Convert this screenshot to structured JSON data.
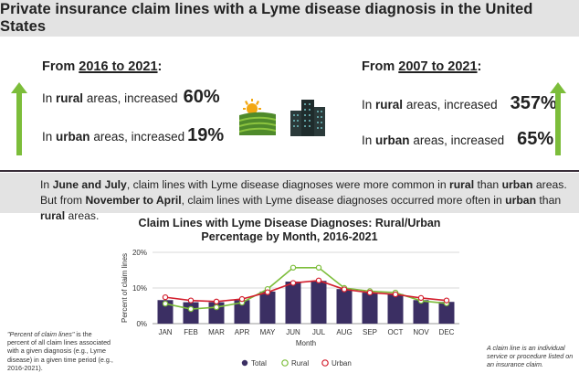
{
  "title": "Private insurance claim lines with a Lyme disease diagnosis in the United States",
  "left_block": {
    "from_label": "From",
    "years": "2016 to 2021",
    "colon": ":",
    "rural_prefix": "In",
    "rural_word": "rural",
    "rural_suffix": "areas, increased",
    "rural_value": "60%",
    "urban_prefix": "In",
    "urban_word": "urban",
    "urban_suffix": "areas, increased",
    "urban_value": "19%"
  },
  "right_block": {
    "from_label": "From",
    "years": "2007 to 2021",
    "colon": ":",
    "rural_prefix": "In",
    "rural_word": "rural",
    "rural_suffix": "areas, increased",
    "rural_value": "357%",
    "urban_prefix": "In",
    "urban_word": "urban",
    "urban_suffix": "areas, increased",
    "urban_value": "65%"
  },
  "icons": {
    "farm": "farm-field-sun-icon",
    "city": "city-buildings-icon",
    "arrow": "up-arrow-icon"
  },
  "note": {
    "s1a": "In",
    "s1b": "June and July",
    "s1c": ", claim lines with Lyme disease diagnoses were more common in",
    "s1d": "rural",
    "s1e": "than",
    "s1f": "urban",
    "s1g": "areas. But",
    "s2a": "from",
    "s2b": "November to April",
    "s2c": ", claim lines with Lyme disease diagnoses occurred more often in",
    "s2d": "urban",
    "s2e": "than",
    "s2f": "rural",
    "s2g": "areas."
  },
  "chart_data": {
    "type": "bar",
    "title": "Claim Lines with Lyme Disease Diagnoses: Rural/Urban Percentage by Month, 2016-2021",
    "xlabel": "Month",
    "ylabel": "Percent of claim lines",
    "ylim": [
      0,
      20
    ],
    "yticks": [
      "0%",
      "10%",
      "20%"
    ],
    "categories": [
      "JAN",
      "FEB",
      "MAR",
      "APR",
      "MAY",
      "JUN",
      "JUL",
      "AUG",
      "SEP",
      "OCT",
      "NOV",
      "DEC"
    ],
    "series": [
      {
        "name": "Total",
        "kind": "bar",
        "color": "#3b2f63",
        "values": [
          6.6,
          6.0,
          6.0,
          6.6,
          9.0,
          11.8,
          12.0,
          9.7,
          8.7,
          8.3,
          6.6,
          6.1
        ]
      },
      {
        "name": "Rural",
        "kind": "line",
        "color": "#7cbd3a",
        "values": [
          5.6,
          4.1,
          4.6,
          5.9,
          9.7,
          15.7,
          15.7,
          10.0,
          9.1,
          8.7,
          6.4,
          5.7
        ]
      },
      {
        "name": "Urban",
        "kind": "line",
        "color": "#d31f2e",
        "values": [
          7.4,
          6.5,
          6.2,
          6.9,
          8.8,
          11.4,
          12.1,
          9.6,
          8.7,
          8.2,
          7.2,
          6.5
        ]
      }
    ],
    "grid": true,
    "legend": "bottom"
  },
  "footnotes": {
    "left_quote": "\"Percent of claim lines\"",
    "left_rest": " is the percent of all claim lines associated with a given diagnosis (e.g., Lyme disease) in a given time period (e.g., 2016-2021).",
    "right": "A claim line is an individual service or procedure listed on an insurance claim."
  }
}
